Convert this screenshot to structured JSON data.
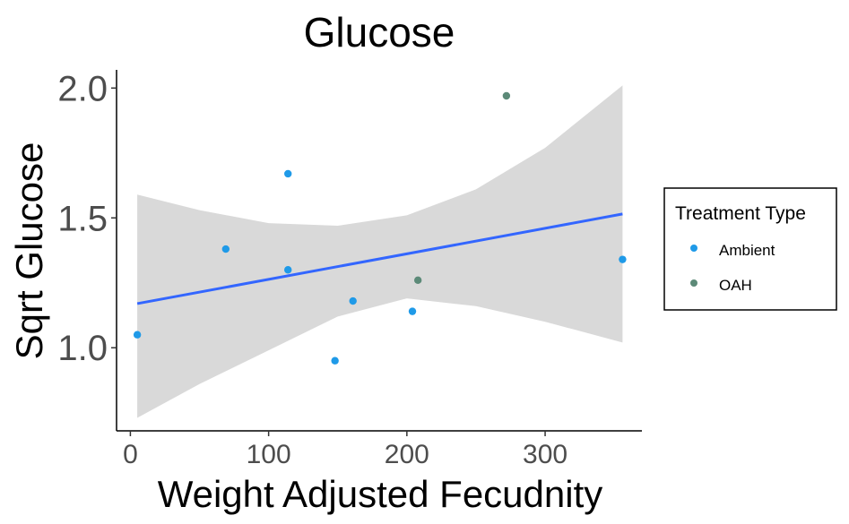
{
  "chart_data": {
    "type": "scatter",
    "title": "Glucose",
    "xlabel": "Weight Adjusted Fecudnity",
    "ylabel": "Sqrt Glucose",
    "xlim": [
      -10,
      370
    ],
    "ylim": [
      0.68,
      2.07
    ],
    "xticks": [
      0,
      100,
      200,
      300
    ],
    "yticks": [
      1.0,
      1.5,
      2.0
    ],
    "ytick_labels": [
      "1.0",
      "1.5",
      "2.0"
    ],
    "grid": false,
    "legend": {
      "title": "Treatment Type",
      "position": "right",
      "entries": [
        {
          "label": "Ambient",
          "color": "#1f9ae8"
        },
        {
          "label": "OAH",
          "color": "#5c8a78"
        }
      ]
    },
    "series": [
      {
        "name": "Ambient",
        "color": "#1f9ae8",
        "points": [
          {
            "x": 5,
            "y": 1.05
          },
          {
            "x": 69,
            "y": 1.38
          },
          {
            "x": 114,
            "y": 1.67
          },
          {
            "x": 114,
            "y": 1.3
          },
          {
            "x": 148,
            "y": 0.95
          },
          {
            "x": 161,
            "y": 1.18
          },
          {
            "x": 204,
            "y": 1.14
          },
          {
            "x": 356,
            "y": 1.34
          }
        ]
      },
      {
        "name": "OAH",
        "color": "#5c8a78",
        "points": [
          {
            "x": 208,
            "y": 1.26
          },
          {
            "x": 272,
            "y": 1.97
          }
        ]
      }
    ],
    "fit": {
      "color": "#3366ff",
      "band_color": "#d9d9d9",
      "line": [
        {
          "x": 5,
          "y": 1.17
        },
        {
          "x": 356,
          "y": 1.515
        }
      ],
      "band_upper": [
        {
          "x": 5,
          "y": 1.59
        },
        {
          "x": 50,
          "y": 1.53
        },
        {
          "x": 100,
          "y": 1.48
        },
        {
          "x": 150,
          "y": 1.47
        },
        {
          "x": 200,
          "y": 1.51
        },
        {
          "x": 250,
          "y": 1.61
        },
        {
          "x": 300,
          "y": 1.77
        },
        {
          "x": 356,
          "y": 2.01
        }
      ],
      "band_lower": [
        {
          "x": 5,
          "y": 0.73
        },
        {
          "x": 50,
          "y": 0.86
        },
        {
          "x": 100,
          "y": 0.99
        },
        {
          "x": 150,
          "y": 1.12
        },
        {
          "x": 200,
          "y": 1.19
        },
        {
          "x": 250,
          "y": 1.16
        },
        {
          "x": 300,
          "y": 1.1
        },
        {
          "x": 356,
          "y": 1.02
        }
      ]
    }
  }
}
